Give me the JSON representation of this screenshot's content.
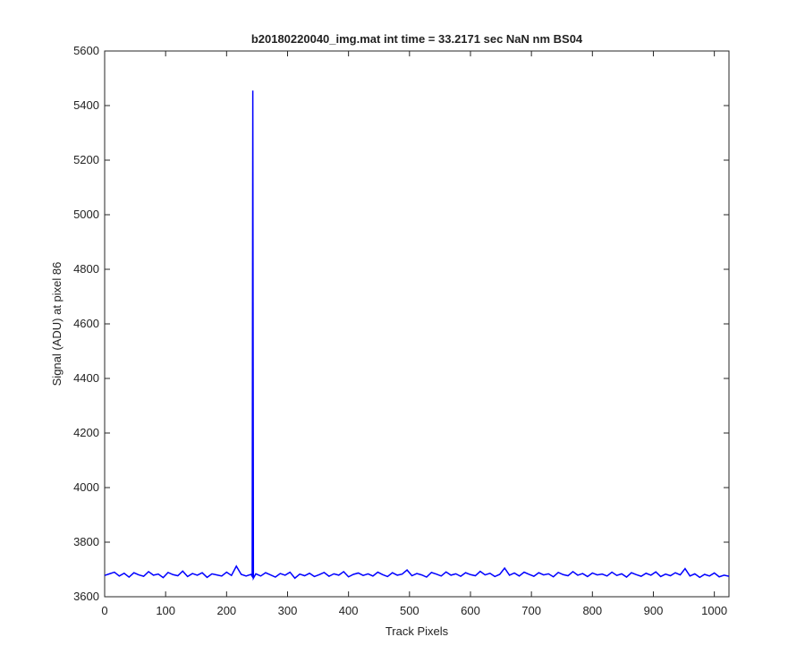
{
  "chart_data": {
    "type": "line",
    "title": "b20180220040_img.mat int time = 33.2171 sec  NaN nm BS04",
    "x_label": "Track Pixels",
    "y_label": "Signal (ADU) at pixel 86",
    "x": [
      0,
      8,
      16,
      24,
      32,
      40,
      48,
      56,
      64,
      72,
      80,
      88,
      96,
      104,
      112,
      120,
      128,
      136,
      144,
      152,
      160,
      168,
      176,
      184,
      192,
      200,
      208,
      216,
      224,
      232,
      240,
      242,
      243,
      244,
      248,
      256,
      264,
      272,
      280,
      288,
      296,
      304,
      312,
      320,
      328,
      336,
      344,
      352,
      360,
      368,
      376,
      384,
      392,
      400,
      408,
      416,
      424,
      432,
      440,
      448,
      456,
      464,
      472,
      480,
      488,
      496,
      504,
      512,
      520,
      528,
      536,
      544,
      552,
      560,
      568,
      576,
      584,
      592,
      600,
      608,
      616,
      624,
      632,
      640,
      648,
      656,
      664,
      672,
      680,
      688,
      696,
      704,
      712,
      720,
      728,
      736,
      744,
      752,
      760,
      768,
      776,
      784,
      792,
      800,
      808,
      816,
      824,
      832,
      840,
      848,
      856,
      864,
      872,
      880,
      888,
      896,
      904,
      912,
      920,
      928,
      936,
      944,
      952,
      960,
      968,
      976,
      984,
      992,
      1000,
      1008,
      1016,
      1024
    ],
    "series": [
      {
        "name": "signal",
        "color": "#0000ff",
        "values": [
          3678,
          3684,
          3690,
          3676,
          3686,
          3672,
          3688,
          3680,
          3675,
          3692,
          3679,
          3683,
          3670,
          3689,
          3681,
          3677,
          3694,
          3674,
          3685,
          3679,
          3688,
          3671,
          3684,
          3680,
          3676,
          3690,
          3678,
          3712,
          3682,
          3676,
          3682,
          3675,
          5455,
          3668,
          3684,
          3676,
          3688,
          3680,
          3672,
          3685,
          3679,
          3690,
          3668,
          3683,
          3677,
          3686,
          3674,
          3681,
          3689,
          3675,
          3684,
          3679,
          3692,
          3673,
          3682,
          3687,
          3678,
          3684,
          3676,
          3690,
          3681,
          3674,
          3688,
          3679,
          3683,
          3698,
          3677,
          3685,
          3680,
          3672,
          3689,
          3683,
          3676,
          3691,
          3679,
          3684,
          3675,
          3688,
          3681,
          3677,
          3693,
          3680,
          3686,
          3674,
          3682,
          3705,
          3679,
          3687,
          3676,
          3690,
          3682,
          3675,
          3688,
          3680,
          3684,
          3673,
          3689,
          3681,
          3677,
          3692,
          3679,
          3685,
          3674,
          3687,
          3680,
          3683,
          3676,
          3690,
          3678,
          3684,
          3672,
          3688,
          3681,
          3675,
          3686,
          3679,
          3691,
          3674,
          3683,
          3677,
          3688,
          3680,
          3703,
          3676,
          3684,
          3671,
          3682,
          3676,
          3687,
          3673,
          3679,
          3675
        ]
      }
    ],
    "xlim": [
      0,
      1024
    ],
    "xticks": [
      0,
      100,
      200,
      300,
      400,
      500,
      600,
      700,
      800,
      900,
      1000
    ],
    "ylim": [
      3600,
      5600
    ],
    "yticks": [
      3600,
      3800,
      4000,
      4200,
      4400,
      4600,
      4800,
      5000,
      5200,
      5400,
      5600
    ]
  }
}
